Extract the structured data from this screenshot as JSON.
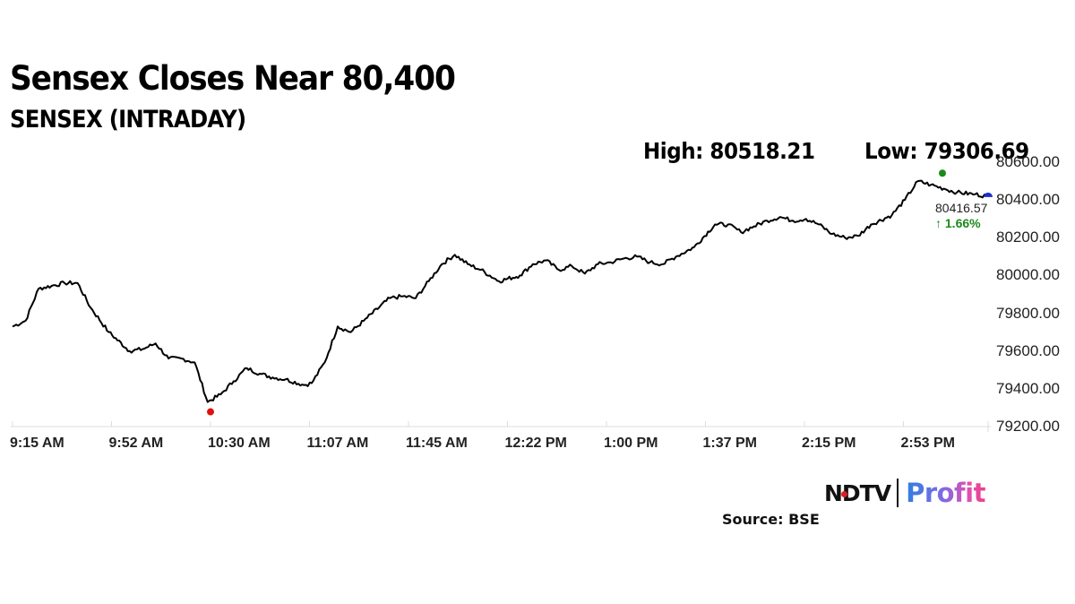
{
  "header": {
    "title": "Sensex Closes Near 80,400",
    "subtitle": "SENSEX (INTRADAY)",
    "high_label": "High: 80518.21",
    "low_label": "Low: 79306.69"
  },
  "last": {
    "value": "80416.57",
    "change": "↑ 1.66%"
  },
  "footer": {
    "logo_left": "NDTV",
    "logo_right": "Profit",
    "source": "Source: BSE"
  },
  "colors": {
    "line": "#000000",
    "high_marker": "#1a8a1a",
    "low_marker": "#e01010",
    "last_marker": "#1a2fd0",
    "change_positive": "#1b8a1b",
    "axis": "#d9d9d9"
  },
  "chart_data": {
    "type": "line",
    "title": "Sensex Closes Near 80,400",
    "subtitle": "SENSEX (INTRADAY)",
    "xlabel": "",
    "ylabel": "",
    "ylim": [
      79200,
      80600
    ],
    "grid": false,
    "legend": null,
    "y_ticks": [
      "80600.00",
      "80400.00",
      "80200.00",
      "80000.00",
      "79800.00",
      "79600.00",
      "79400.00",
      "79200.00"
    ],
    "x_ticks": [
      "9:15 AM",
      "9:52 AM",
      "10:30 AM",
      "11:07 AM",
      "11:45 AM",
      "12:22 PM",
      "1:00 PM",
      "1:37 PM",
      "2:15 PM",
      "2:53 PM"
    ],
    "high": {
      "value": 80518.21,
      "time_approx": "3:05 PM"
    },
    "low": {
      "value": 79306.69,
      "time_approx": "10:30 AM"
    },
    "close": {
      "value": 80416.57,
      "change_pct": 1.66
    },
    "annotations": [
      "High: 80518.21",
      "Low: 79306.69",
      "80416.57",
      "↑ 1.66%"
    ],
    "series": [
      {
        "name": "SENSEX",
        "x": [
          "9:15",
          "9:20",
          "9:25",
          "9:30",
          "9:35",
          "9:40",
          "9:45",
          "9:52",
          "10:00",
          "10:05",
          "10:10",
          "10:15",
          "10:20",
          "10:25",
          "10:30",
          "10:35",
          "10:40",
          "10:45",
          "10:50",
          "10:55",
          "11:00",
          "11:07",
          "11:10",
          "11:15",
          "11:20",
          "11:25",
          "11:30",
          "11:40",
          "11:45",
          "11:50",
          "11:55",
          "12:00",
          "12:05",
          "12:10",
          "12:15",
          "12:22",
          "12:30",
          "12:35",
          "12:40",
          "12:45",
          "12:50",
          "12:55",
          "1:00",
          "1:05",
          "1:10",
          "1:15",
          "1:20",
          "1:25",
          "1:30",
          "1:37",
          "1:45",
          "1:50",
          "1:55",
          "2:00",
          "2:05",
          "2:10",
          "2:15",
          "2:20",
          "2:25",
          "2:30",
          "2:35",
          "2:40",
          "2:45",
          "2:53",
          "2:58",
          "3:03",
          "3:08",
          "3:13",
          "3:18",
          "3:25",
          "3:30"
        ],
        "values": [
          79730,
          79760,
          79930,
          79945,
          79960,
          79960,
          79830,
          79700,
          79600,
          79610,
          79640,
          79560,
          79560,
          79540,
          79330,
          79370,
          79440,
          79510,
          79480,
          79460,
          79450,
          79420,
          79430,
          79540,
          79730,
          79700,
          79760,
          79880,
          79890,
          79880,
          79970,
          80060,
          80110,
          80060,
          80030,
          79970,
          80000,
          80060,
          80080,
          80030,
          80050,
          80010,
          80060,
          80070,
          80090,
          80100,
          80070,
          80060,
          80100,
          80150,
          80270,
          80270,
          80230,
          80260,
          80290,
          80310,
          80290,
          80300,
          80270,
          80220,
          80200,
          80210,
          80270,
          80320,
          80400,
          80500,
          80480,
          80460,
          80440,
          80430,
          80420
        ]
      }
    ]
  }
}
